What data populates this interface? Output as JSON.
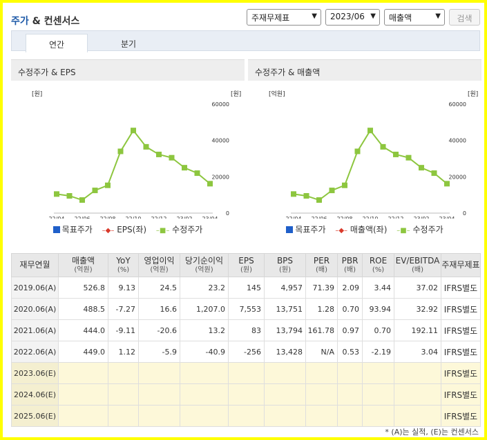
{
  "header": {
    "title_accent": "주가",
    "title_rest": " & 컨센서스",
    "select_report": "주재무제표",
    "select_period": "2023/06",
    "select_metric": "매출액",
    "search_label": "검색"
  },
  "tabs": [
    {
      "label": "연간",
      "active": true
    },
    {
      "label": "분기",
      "active": false
    }
  ],
  "panels": [
    {
      "title": "수정주가 & EPS",
      "left_unit": "[원]",
      "right_unit": "[원]",
      "legend": [
        "목표주가",
        "EPS(좌)",
        "수정주가"
      ]
    },
    {
      "title": "수정주가 & 매출액",
      "left_unit": "[억원]",
      "right_unit": "[원]",
      "legend": [
        "목표주가",
        "매출액(좌)",
        "수정주가"
      ]
    }
  ],
  "colors": {
    "target_price": "#1f5fc9",
    "eps": "#d93a2b",
    "adj_price": "#8dc63f"
  },
  "chart_data": [
    {
      "type": "line",
      "title": "수정주가 & EPS",
      "categories": [
        "22/04",
        "22/05",
        "22/06",
        "22/07",
        "22/08",
        "22/09",
        "22/10",
        "22/11",
        "22/12",
        "23/01",
        "23/02",
        "23/03",
        "23/04"
      ],
      "x_tick_labels": [
        "22/04",
        "22/06",
        "22/08",
        "22/10",
        "22/12",
        "23/02",
        "23/04"
      ],
      "series": [
        {
          "name": "수정주가",
          "values": [
            10500,
            9500,
            7200,
            12500,
            15300,
            34000,
            45500,
            36500,
            32300,
            30500,
            25000,
            22000,
            16200
          ]
        }
      ],
      "y_right_ticks": [
        "60000",
        "40000",
        "20000",
        "0"
      ],
      "ylim": [
        0,
        60000
      ],
      "legend_position": "bottom"
    },
    {
      "type": "line",
      "title": "수정주가 & 매출액",
      "categories": [
        "22/04",
        "22/05",
        "22/06",
        "22/07",
        "22/08",
        "22/09",
        "22/10",
        "22/11",
        "22/12",
        "23/01",
        "23/02",
        "23/03",
        "23/04"
      ],
      "x_tick_labels": [
        "22/04",
        "22/06",
        "22/08",
        "22/10",
        "22/12",
        "23/02",
        "23/04"
      ],
      "series": [
        {
          "name": "수정주가",
          "values": [
            10500,
            9500,
            7200,
            12500,
            15300,
            34000,
            45500,
            36500,
            32300,
            30500,
            25000,
            22000,
            16200
          ]
        }
      ],
      "y_right_ticks": [
        "60000",
        "40000",
        "20000",
        "0"
      ],
      "ylim": [
        0,
        60000
      ],
      "legend_position": "bottom"
    }
  ],
  "table": {
    "columns": [
      {
        "name": "재무연월",
        "sub": ""
      },
      {
        "name": "매출액",
        "sub": "(억원)"
      },
      {
        "name": "YoY",
        "sub": "(%)"
      },
      {
        "name": "영업이익",
        "sub": "(억원)"
      },
      {
        "name": "당기순이익",
        "sub": "(억원)"
      },
      {
        "name": "EPS",
        "sub": "(원)"
      },
      {
        "name": "BPS",
        "sub": "(원)"
      },
      {
        "name": "PER",
        "sub": "(배)"
      },
      {
        "name": "PBR",
        "sub": "(배)"
      },
      {
        "name": "ROE",
        "sub": "(%)"
      },
      {
        "name": "EV/EBITDA",
        "sub": "(배)"
      },
      {
        "name": "주재무제표",
        "sub": ""
      }
    ],
    "rows": [
      {
        "estimate": false,
        "cells": [
          "2019.06(A)",
          "526.8",
          "9.13",
          "24.5",
          "23.2",
          "145",
          "4,957",
          "71.39",
          "2.09",
          "3.44",
          "37.02",
          "IFRS별도"
        ]
      },
      {
        "estimate": false,
        "cells": [
          "2020.06(A)",
          "488.5",
          "-7.27",
          "16.6",
          "1,207.0",
          "7,553",
          "13,751",
          "1.28",
          "0.70",
          "93.94",
          "32.92",
          "IFRS별도"
        ]
      },
      {
        "estimate": false,
        "cells": [
          "2021.06(A)",
          "444.0",
          "-9.11",
          "-20.6",
          "13.2",
          "83",
          "13,794",
          "161.78",
          "0.97",
          "0.70",
          "192.11",
          "IFRS별도"
        ]
      },
      {
        "estimate": false,
        "cells": [
          "2022.06(A)",
          "449.0",
          "1.12",
          "-5.9",
          "-40.9",
          "-256",
          "13,428",
          "N/A",
          "0.53",
          "-2.19",
          "3.04",
          "IFRS별도"
        ]
      },
      {
        "estimate": true,
        "cells": [
          "2023.06(E)",
          "",
          "",
          "",
          "",
          "",
          "",
          "",
          "",
          "",
          "",
          "IFRS별도"
        ]
      },
      {
        "estimate": true,
        "cells": [
          "2024.06(E)",
          "",
          "",
          "",
          "",
          "",
          "",
          "",
          "",
          "",
          "",
          "IFRS별도"
        ]
      },
      {
        "estimate": true,
        "cells": [
          "2025.06(E)",
          "",
          "",
          "",
          "",
          "",
          "",
          "",
          "",
          "",
          "",
          "IFRS별도"
        ]
      }
    ]
  },
  "footnote": "* (A)는 실적, (E)는 컨센서스"
}
